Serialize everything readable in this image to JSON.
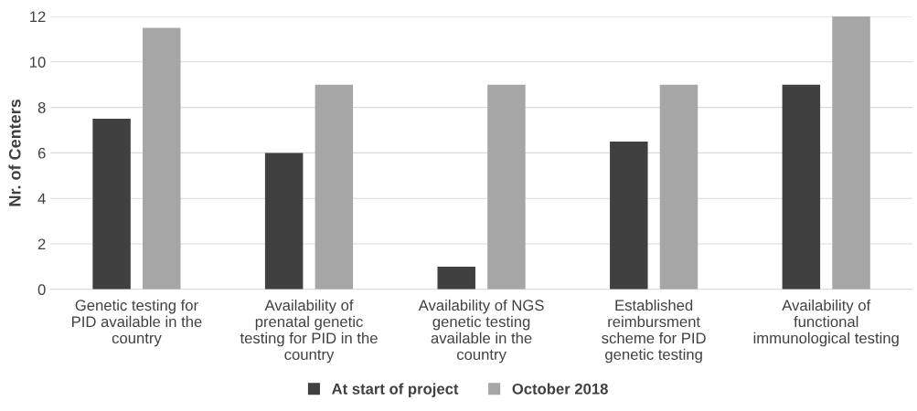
{
  "chart_data": {
    "type": "bar",
    "ylabel": "Nr. of Centers",
    "categories": [
      "Genetic testing for\nPID available in the\ncountry",
      "Availability of\nprenatal genetic\ntesting for PID in the\ncountry",
      "Availability of NGS\ngenetic testing\navailable in the\ncountry",
      "Established\nreimbursment\nscheme for PID\ngenetic testing",
      "Availability of\nfunctional\nimmunological testing"
    ],
    "series": [
      {
        "name": "At start of project",
        "color": "#404040",
        "values": [
          7.5,
          6,
          1,
          6.5,
          9
        ]
      },
      {
        "name": "October 2018",
        "color": "#a6a6a6",
        "values": [
          11.5,
          9,
          9,
          9,
          12
        ]
      }
    ],
    "ylim": [
      0,
      12
    ],
    "yticks": [
      0,
      2,
      4,
      6,
      8,
      10,
      12
    ],
    "grid": "y",
    "legend": "bottom"
  }
}
